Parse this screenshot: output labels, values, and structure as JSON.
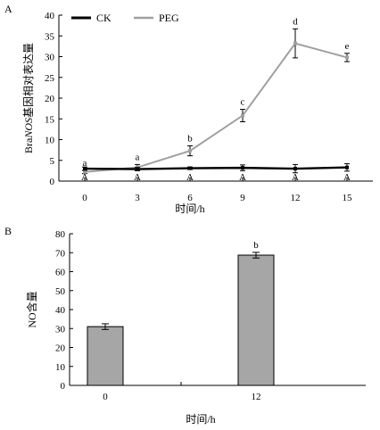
{
  "chart_data": [
    {
      "type": "line",
      "panel_label": "A",
      "x": [
        0,
        3,
        6,
        9,
        12,
        15
      ],
      "xticks": [
        "0",
        "3",
        "6",
        "9",
        "12",
        "15"
      ],
      "xlabel": "时间/h",
      "ylabel_prefix": "Bra",
      "ylabel_italic": "NOS",
      "ylabel_suffix": "基因相对表达量",
      "ylim": [
        0,
        40
      ],
      "yticks": [
        0,
        5,
        10,
        15,
        20,
        25,
        30,
        35,
        40
      ],
      "legend_position": "top-left",
      "series": [
        {
          "name": "CK",
          "color": "#000000",
          "values": [
            3.0,
            2.9,
            3.1,
            3.2,
            3.0,
            3.3
          ],
          "errors": [
            0.4,
            0.4,
            0.3,
            0.7,
            1.0,
            0.9
          ],
          "letters": [
            "A",
            "A",
            "A",
            "A",
            "A",
            "A"
          ]
        },
        {
          "name": "PEG",
          "color": "#a0a0a0",
          "values": [
            2.2,
            3.3,
            7.3,
            15.8,
            33.2,
            29.8
          ],
          "errors": [
            0.4,
            0.7,
            1.2,
            1.5,
            3.5,
            1.0
          ],
          "letters": [
            "a",
            "a",
            "b",
            "c",
            "d",
            "e"
          ]
        }
      ]
    },
    {
      "type": "bar",
      "panel_label": "B",
      "categories": [
        "0",
        "12"
      ],
      "values": [
        31.0,
        68.7
      ],
      "errors": [
        1.5,
        1.5
      ],
      "letters": [
        "",
        "b"
      ],
      "bar_color": "#a6a6a6",
      "xlabel": "时间/h",
      "ylabel": "NO含量",
      "ylim": [
        0,
        80
      ],
      "yticks": [
        0,
        10,
        20,
        30,
        40,
        50,
        60,
        70,
        80
      ]
    }
  ]
}
